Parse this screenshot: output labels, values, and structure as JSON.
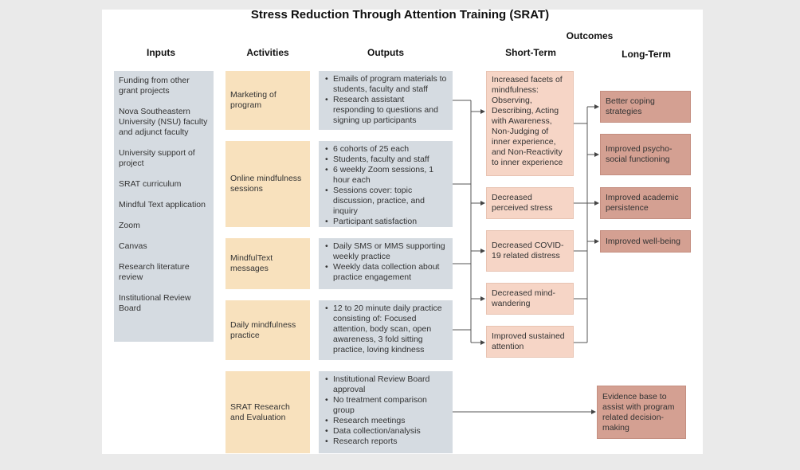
{
  "title": "Stress Reduction Through Attention Training (SRAT)",
  "headers": {
    "inputs": "Inputs",
    "activities": "Activities",
    "outputs": "Outputs",
    "outcomes": "Outcomes",
    "short_term": "Short-Term",
    "long_term": "Long-Term"
  },
  "inputs": [
    "Funding from other grant projects",
    "Nova Southeastern University (NSU) faculty and adjunct faculty",
    "University support of project",
    "SRAT curriculum",
    "Mindful Text application",
    "Zoom",
    "Canvas",
    "Research literature review",
    "Institutional Review Board"
  ],
  "activities": [
    "Marketing of program",
    "Online mindfulness sessions",
    "MindfulText messages",
    "Daily mindfulness practice",
    "SRAT Research and Evaluation"
  ],
  "outputs": [
    [
      "Emails of program materials to students, faculty and staff",
      "Research assistant responding to questions and signing up participants"
    ],
    [
      "6 cohorts of 25 each",
      "Students, faculty and staff",
      "6 weekly Zoom sessions, 1 hour each",
      "Sessions cover: topic discussion, practice, and inquiry",
      "Participant satisfaction"
    ],
    [
      "Daily SMS or MMS supporting weekly practice",
      "Weekly data collection about practice engagement"
    ],
    [
      "12 to 20 minute daily practice consisting of: Focused attention, body scan, open awareness, 3 fold sitting practice, loving kindness"
    ],
    [
      "Institutional Review Board approval",
      "No treatment comparison group",
      "Research meetings",
      "Data collection/analysis",
      "Research reports"
    ]
  ],
  "short_term": [
    "Increased facets of mindfulness: Observing, Describing, Acting with Awareness, Non-Judging of inner experience, and Non-Reactivity to inner experience",
    "Decreased perceived stress",
    "Decreased COVID-19 related distress",
    "Decreased mind-wandering",
    "Improved sustained attention"
  ],
  "long_term": [
    "Better coping strategies",
    "Improved psycho-social functioning",
    "Improved academic persistence",
    "Improved well-being",
    "Evidence base to assist with program related decision-making"
  ],
  "colors": {
    "inputs": "#d5dbe1",
    "activities": "#f8e1bd",
    "outputs": "#d5dbe1",
    "short_term": "#f6d5c6",
    "long_term": "#d4a092"
  }
}
